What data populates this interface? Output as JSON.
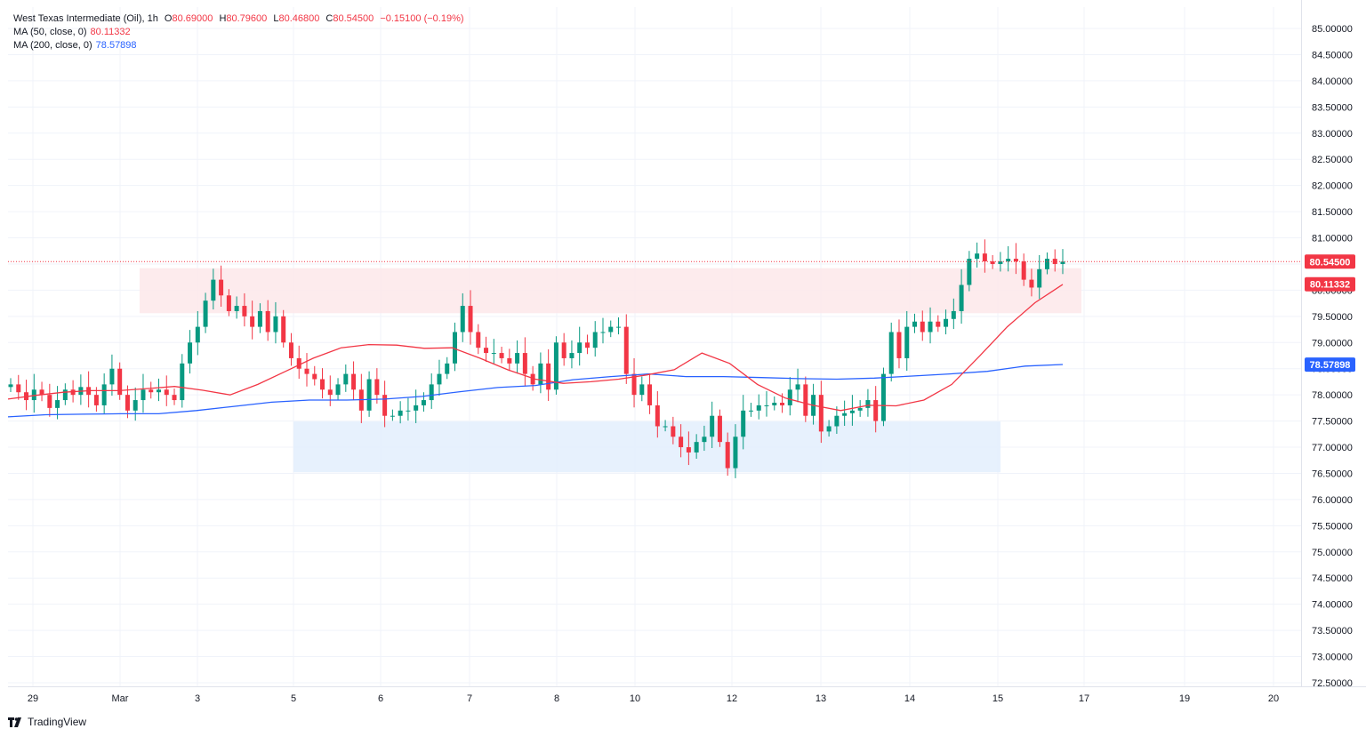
{
  "legend": {
    "instrument": "West Texas Intermediate (Oil)",
    "interval": "1h",
    "o_label": "O",
    "o_value": "80.69000",
    "h_label": "H",
    "h_value": "80.79600",
    "l_label": "L",
    "l_value": "80.46800",
    "c_label": "C",
    "c_value": "80.54500",
    "change": "−0.15100 (−0.19%)",
    "ma50_label": "MA (50, close, 0)",
    "ma50_value": "80.11332",
    "ma200_label": "MA (200, close, 0)",
    "ma200_value": "78.57898"
  },
  "brand": "TradingView",
  "colors": {
    "up": "#089981",
    "down": "#f23645",
    "ma50": "#f23645",
    "ma200": "#2962ff",
    "resistance_zone": "#fde8ea",
    "support_zone": "#e3effd",
    "grid": "#f0f3fa",
    "axis_text": "#131722"
  },
  "chart_data": {
    "type": "candlestick",
    "ylim": [
      72.5,
      85.0
    ],
    "y_ticks": [
      "85.00000",
      "84.50000",
      "84.00000",
      "83.50000",
      "83.00000",
      "82.50000",
      "82.00000",
      "81.50000",
      "81.00000",
      "80.50000",
      "80.00000",
      "79.50000",
      "79.00000",
      "78.50000",
      "78.00000",
      "77.50000",
      "77.00000",
      "76.50000",
      "76.00000",
      "75.50000",
      "75.00000",
      "74.50000",
      "74.00000",
      "73.50000",
      "73.00000",
      "72.50000"
    ],
    "x_ticks": [
      "29",
      "Mar",
      "3",
      "5",
      "6",
      "7",
      "8",
      "10",
      "12",
      "13",
      "14",
      "15",
      "17",
      "19",
      "20"
    ],
    "last_price": 80.545,
    "last_price_label": "80.54500",
    "ma50_last": 80.11332,
    "ma50_label": "80.11332",
    "ma200_last": 78.57898,
    "ma200_label": "78.57898",
    "zones": [
      {
        "name": "resistance",
        "y_low": 79.56,
        "y_high": 80.42
      },
      {
        "name": "support",
        "y_low": 76.52,
        "y_high": 77.49
      }
    ],
    "price_path": [
      78.2,
      78.05,
      77.9,
      78.1,
      78.0,
      77.75,
      77.9,
      78.1,
      78.0,
      78.15,
      78.0,
      77.8,
      78.2,
      78.5,
      78.0,
      77.7,
      77.9,
      78.1,
      78.05,
      78.1,
      78.0,
      77.9,
      78.6,
      79.0,
      79.3,
      79.8,
      80.2,
      79.9,
      79.6,
      79.7,
      79.5,
      79.3,
      79.6,
      79.2,
      79.5,
      79.0,
      78.7,
      78.5,
      78.4,
      78.3,
      78.1,
      78.0,
      78.2,
      78.4,
      78.1,
      77.7,
      78.3,
      78.0,
      77.6,
      77.6,
      77.7,
      77.7,
      77.8,
      77.9,
      78.2,
      78.4,
      78.6,
      79.2,
      79.7,
      79.2,
      78.9,
      78.8,
      78.8,
      78.7,
      78.6,
      78.8,
      78.4,
      78.2,
      78.6,
      78.1,
      79.0,
      78.7,
      78.8,
      79.0,
      78.9,
      79.2,
      79.2,
      79.3,
      79.3,
      78.4,
      78.0,
      78.2,
      77.8,
      77.4,
      77.4,
      77.2,
      77.0,
      76.9,
      77.1,
      77.2,
      77.6,
      77.1,
      76.6,
      77.2,
      77.7,
      77.7,
      77.8,
      77.8,
      77.85,
      77.8,
      78.1,
      78.2,
      77.6,
      78.0,
      77.3,
      77.4,
      77.6,
      77.65,
      77.7,
      77.75,
      77.9,
      77.5,
      78.4,
      79.2,
      78.7,
      79.3,
      79.4,
      79.2,
      79.4,
      79.3,
      79.45,
      79.6,
      80.1,
      80.6,
      80.7,
      80.55,
      80.5,
      80.55,
      80.6,
      80.55,
      80.2,
      80.05,
      80.4,
      80.6,
      80.5,
      80.545
    ],
    "ma50_path": [
      77.92,
      77.99,
      78.05,
      78.08,
      78.08,
      78.12,
      78.16,
      78.09,
      78.0,
      78.2,
      78.45,
      78.7,
      78.9,
      78.96,
      78.95,
      78.89,
      78.9,
      78.7,
      78.48,
      78.3,
      78.22,
      78.25,
      78.3,
      78.38,
      78.48,
      78.8,
      78.6,
      78.2,
      77.94,
      77.8,
      77.7,
      77.8,
      77.79,
      77.9,
      78.2,
      78.74,
      79.3,
      79.76,
      80.11
    ],
    "ma200_path": [
      77.58,
      77.62,
      77.63,
      77.64,
      77.64,
      77.7,
      77.78,
      77.86,
      77.9,
      77.9,
      77.92,
      77.97,
      78.06,
      78.14,
      78.18,
      78.29,
      78.35,
      78.4,
      78.35,
      78.35,
      78.33,
      78.31,
      78.3,
      78.32,
      78.36,
      78.4,
      78.45,
      78.55,
      78.58
    ]
  }
}
